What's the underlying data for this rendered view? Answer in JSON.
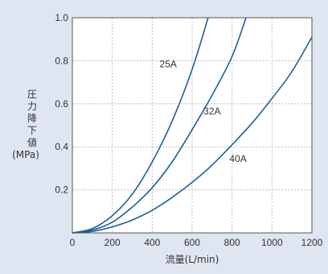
{
  "chart_data": {
    "type": "line",
    "xlabel": "流量(L/min)",
    "ylabel_lines": [
      "圧",
      "力",
      "降",
      "下",
      "値",
      "(MPa)"
    ],
    "xlim": [
      0,
      1200
    ],
    "ylim": [
      0,
      1.0
    ],
    "x_ticks": [
      0,
      200,
      400,
      600,
      800,
      1000,
      1200
    ],
    "y_ticks": [
      0.2,
      0.4,
      0.6,
      0.8,
      1.0
    ],
    "x_tick_labels": [
      "0",
      "200",
      "400",
      "600",
      "800",
      "1000",
      "1200"
    ],
    "y_tick_labels": [
      "0.2",
      "0.4",
      "0.6",
      "0.8",
      "1.0"
    ],
    "grid": true,
    "colors": {
      "line": "#1e5f9e",
      "grid": "#bdbdbd",
      "background": "#dfe6f1",
      "plot": "#ffffff"
    },
    "series": [
      {
        "name": "25A",
        "label_at": [
          480,
          0.77
        ],
        "points": [
          [
            0,
            0
          ],
          [
            100,
            0.02
          ],
          [
            200,
            0.08
          ],
          [
            300,
            0.18
          ],
          [
            400,
            0.33
          ],
          [
            500,
            0.52
          ],
          [
            600,
            0.76
          ],
          [
            680,
            1.0
          ]
        ]
      },
      {
        "name": "32A",
        "label_at": [
          700,
          0.55
        ],
        "points": [
          [
            0,
            0
          ],
          [
            100,
            0.013
          ],
          [
            200,
            0.05
          ],
          [
            300,
            0.12
          ],
          [
            400,
            0.21
          ],
          [
            500,
            0.33
          ],
          [
            600,
            0.48
          ],
          [
            700,
            0.64
          ],
          [
            800,
            0.82
          ],
          [
            870,
            1.0
          ]
        ]
      },
      {
        "name": "40A",
        "label_at": [
          830,
          0.33
        ],
        "points": [
          [
            0,
            0
          ],
          [
            100,
            0.007
          ],
          [
            200,
            0.028
          ],
          [
            300,
            0.06
          ],
          [
            400,
            0.105
          ],
          [
            500,
            0.165
          ],
          [
            600,
            0.235
          ],
          [
            700,
            0.315
          ],
          [
            800,
            0.41
          ],
          [
            900,
            0.51
          ],
          [
            1000,
            0.625
          ],
          [
            1100,
            0.75
          ],
          [
            1200,
            0.91
          ]
        ]
      }
    ]
  }
}
